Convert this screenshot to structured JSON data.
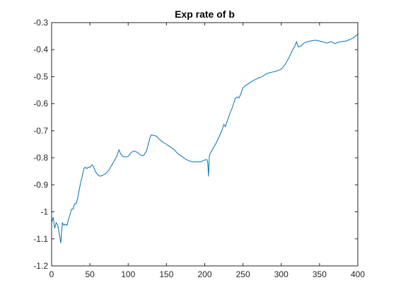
{
  "chart_data": {
    "type": "line",
    "title": "Exp rate of b",
    "xlabel": "",
    "ylabel": "",
    "xlim": [
      0,
      400
    ],
    "ylim": [
      -1.2,
      -0.3
    ],
    "xticks": [
      0,
      50,
      100,
      150,
      200,
      250,
      300,
      350,
      400
    ],
    "yticks": [
      -1.2,
      -1.1,
      -1,
      -0.9,
      -0.8,
      -0.7,
      -0.6,
      -0.5,
      -0.4,
      -0.3
    ],
    "xtick_labels": [
      "0",
      "50",
      "100",
      "150",
      "200",
      "250",
      "300",
      "350",
      "400"
    ],
    "ytick_labels": [
      "-1.2",
      "-1.1",
      "-1",
      "-0.9",
      "-0.8",
      "-0.7",
      "-0.6",
      "-0.5",
      "-0.4",
      "-0.3"
    ],
    "grid": false,
    "series": [
      {
        "color": "#0072bd",
        "x": [
          0,
          2,
          4,
          6,
          8,
          10,
          12,
          14,
          16,
          18,
          20,
          22,
          24,
          26,
          28,
          30,
          32,
          34,
          36,
          38,
          40,
          42,
          44,
          46,
          48,
          50,
          53,
          55,
          57,
          60,
          63,
          66,
          70,
          75,
          80,
          85,
          88,
          90,
          93,
          97,
          100,
          104,
          108,
          112,
          116,
          120,
          124,
          128,
          130,
          133,
          137,
          140,
          145,
          150,
          155,
          160,
          165,
          170,
          175,
          180,
          185,
          190,
          195,
          200,
          203,
          204,
          205,
          206,
          207,
          210,
          215,
          220,
          223,
          225,
          227,
          230,
          233,
          236,
          240,
          243,
          245,
          247,
          250,
          255,
          260,
          265,
          270,
          275,
          280,
          285,
          290,
          295,
          300,
          305,
          310,
          315,
          318,
          320,
          322,
          325,
          330,
          335,
          340,
          345,
          350,
          355,
          360,
          365,
          370,
          375,
          380,
          385,
          390,
          395,
          400
        ],
        "y": [
          -1.04,
          -1.02,
          -1.06,
          -1.04,
          -1.05,
          -1.08,
          -1.115,
          -1.04,
          -1.05,
          -1.045,
          -1.05,
          -1.03,
          -1.01,
          -0.99,
          -0.99,
          -0.97,
          -0.97,
          -0.95,
          -0.92,
          -0.89,
          -0.87,
          -0.84,
          -0.835,
          -0.84,
          -0.835,
          -0.835,
          -0.826,
          -0.835,
          -0.85,
          -0.862,
          -0.868,
          -0.866,
          -0.86,
          -0.845,
          -0.82,
          -0.795,
          -0.77,
          -0.785,
          -0.795,
          -0.797,
          -0.795,
          -0.78,
          -0.775,
          -0.78,
          -0.79,
          -0.792,
          -0.775,
          -0.73,
          -0.715,
          -0.717,
          -0.72,
          -0.73,
          -0.742,
          -0.75,
          -0.76,
          -0.77,
          -0.785,
          -0.795,
          -0.805,
          -0.812,
          -0.815,
          -0.815,
          -0.815,
          -0.808,
          -0.807,
          -0.82,
          -0.868,
          -0.795,
          -0.785,
          -0.77,
          -0.745,
          -0.715,
          -0.695,
          -0.676,
          -0.685,
          -0.66,
          -0.635,
          -0.615,
          -0.58,
          -0.575,
          -0.578,
          -0.565,
          -0.54,
          -0.53,
          -0.52,
          -0.512,
          -0.505,
          -0.5,
          -0.49,
          -0.485,
          -0.482,
          -0.478,
          -0.472,
          -0.455,
          -0.43,
          -0.4,
          -0.385,
          -0.37,
          -0.39,
          -0.388,
          -0.375,
          -0.37,
          -0.367,
          -0.365,
          -0.368,
          -0.372,
          -0.376,
          -0.37,
          -0.378,
          -0.372,
          -0.37,
          -0.368,
          -0.362,
          -0.355,
          -0.342
        ]
      }
    ]
  }
}
